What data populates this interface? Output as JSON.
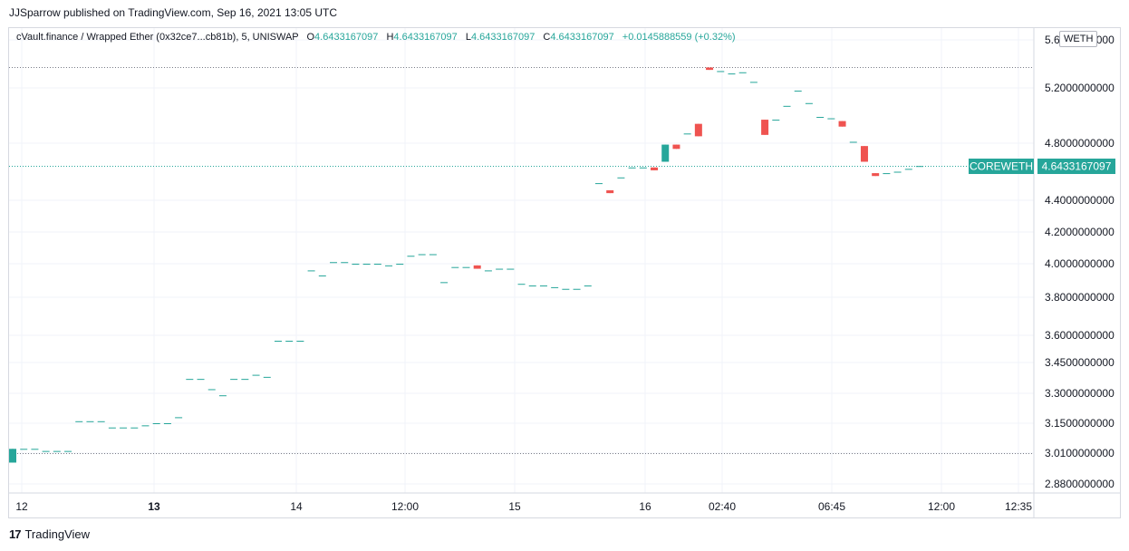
{
  "header": {
    "published": "JJSparrow published on TradingView.com, Sep 16, 2021 13:05 UTC"
  },
  "legend": {
    "symbol": "cVault.finance / Wrapped Ether (0x32ce7...cb81b), 5, UNISWAP",
    "o_label": "O",
    "o_value": "4.6433167097",
    "h_label": "H",
    "h_value": "4.6433167097",
    "l_label": "L",
    "l_value": "4.6433167097",
    "c_label": "C",
    "c_value": "4.6433167097",
    "change": "+0.0145888559 (+0.32%)"
  },
  "currency": "WETH",
  "footer": {
    "brand": "TradingView",
    "logo": "17"
  },
  "colors": {
    "up": "#26a69a",
    "down": "#ef5350",
    "grid": "#f0f3fa",
    "axis_text": "#131722"
  },
  "chart_data": {
    "type": "candlestick",
    "title": "",
    "y_axis_labels": [
      "5.6000000000",
      "5.2000000000",
      "4.8000000000",
      "4.4000000000",
      "4.2000000000",
      "4.0000000000",
      "3.8000000000",
      "3.6000000000",
      "3.4500000000",
      "3.3000000000",
      "3.1500000000",
      "3.0100000000",
      "2.8800000000"
    ],
    "x_axis_labels": [
      "12",
      "13",
      "14",
      "12:00",
      "15",
      "16",
      "02:40",
      "06:45",
      "12:00",
      "12:35"
    ],
    "x_axis_bold": [
      "13"
    ],
    "last_price_label": "COREWETH",
    "last_price": "4.6433167097",
    "reference_lines": [
      3.01,
      5.37
    ],
    "candles": [
      {
        "o": 2.97,
        "h": 3.03,
        "l": 2.97,
        "c": 3.03
      },
      {
        "o": 3.03,
        "h": 3.03,
        "l": 3.03,
        "c": 3.03
      },
      {
        "o": 3.03,
        "h": 3.03,
        "l": 3.03,
        "c": 3.03
      },
      {
        "o": 3.02,
        "h": 3.02,
        "l": 3.02,
        "c": 3.02
      },
      {
        "o": 3.02,
        "h": 3.02,
        "l": 3.02,
        "c": 3.02
      },
      {
        "o": 3.02,
        "h": 3.02,
        "l": 3.02,
        "c": 3.02
      },
      {
        "o": 3.16,
        "h": 3.16,
        "l": 3.16,
        "c": 3.16
      },
      {
        "o": 3.16,
        "h": 3.16,
        "l": 3.16,
        "c": 3.16
      },
      {
        "o": 3.16,
        "h": 3.16,
        "l": 3.16,
        "c": 3.16
      },
      {
        "o": 3.13,
        "h": 3.13,
        "l": 3.13,
        "c": 3.13
      },
      {
        "o": 3.13,
        "h": 3.13,
        "l": 3.13,
        "c": 3.13
      },
      {
        "o": 3.13,
        "h": 3.13,
        "l": 3.13,
        "c": 3.13
      },
      {
        "o": 3.14,
        "h": 3.14,
        "l": 3.14,
        "c": 3.14
      },
      {
        "o": 3.15,
        "h": 3.15,
        "l": 3.15,
        "c": 3.15
      },
      {
        "o": 3.15,
        "h": 3.15,
        "l": 3.15,
        "c": 3.15
      },
      {
        "o": 3.18,
        "h": 3.18,
        "l": 3.18,
        "c": 3.18
      },
      {
        "o": 3.37,
        "h": 3.37,
        "l": 3.37,
        "c": 3.37
      },
      {
        "o": 3.37,
        "h": 3.37,
        "l": 3.37,
        "c": 3.37
      },
      {
        "o": 3.32,
        "h": 3.32,
        "l": 3.32,
        "c": 3.32
      },
      {
        "o": 3.29,
        "h": 3.29,
        "l": 3.29,
        "c": 3.29
      },
      {
        "o": 3.37,
        "h": 3.37,
        "l": 3.37,
        "c": 3.37
      },
      {
        "o": 3.37,
        "h": 3.37,
        "l": 3.37,
        "c": 3.37
      },
      {
        "o": 3.39,
        "h": 3.39,
        "l": 3.39,
        "c": 3.39
      },
      {
        "o": 3.38,
        "h": 3.38,
        "l": 3.38,
        "c": 3.38
      },
      {
        "o": 3.57,
        "h": 3.57,
        "l": 3.57,
        "c": 3.57
      },
      {
        "o": 3.57,
        "h": 3.57,
        "l": 3.57,
        "c": 3.57
      },
      {
        "o": 3.57,
        "h": 3.57,
        "l": 3.57,
        "c": 3.57
      },
      {
        "o": 3.96,
        "h": 3.96,
        "l": 3.96,
        "c": 3.96
      },
      {
        "o": 3.93,
        "h": 3.93,
        "l": 3.93,
        "c": 3.93
      },
      {
        "o": 4.01,
        "h": 4.01,
        "l": 4.01,
        "c": 4.01
      },
      {
        "o": 4.01,
        "h": 4.01,
        "l": 4.01,
        "c": 4.01
      },
      {
        "o": 4.0,
        "h": 4.0,
        "l": 4.0,
        "c": 4.0
      },
      {
        "o": 4.0,
        "h": 4.0,
        "l": 4.0,
        "c": 4.0
      },
      {
        "o": 4.0,
        "h": 4.0,
        "l": 4.0,
        "c": 4.0
      },
      {
        "o": 3.99,
        "h": 3.99,
        "l": 3.99,
        "c": 3.99
      },
      {
        "o": 4.0,
        "h": 4.0,
        "l": 4.0,
        "c": 4.0
      },
      {
        "o": 4.05,
        "h": 4.05,
        "l": 4.05,
        "c": 4.05
      },
      {
        "o": 4.06,
        "h": 4.06,
        "l": 4.06,
        "c": 4.06
      },
      {
        "o": 4.06,
        "h": 4.06,
        "l": 4.06,
        "c": 4.06
      },
      {
        "o": 3.89,
        "h": 3.89,
        "l": 3.89,
        "c": 3.89
      },
      {
        "o": 3.98,
        "h": 3.98,
        "l": 3.98,
        "c": 3.98
      },
      {
        "o": 3.98,
        "h": 3.98,
        "l": 3.98,
        "c": 3.98
      },
      {
        "o": 3.99,
        "h": 3.99,
        "l": 3.97,
        "c": 3.97
      },
      {
        "o": 3.96,
        "h": 3.96,
        "l": 3.96,
        "c": 3.96
      },
      {
        "o": 3.97,
        "h": 3.97,
        "l": 3.97,
        "c": 3.97
      },
      {
        "o": 3.97,
        "h": 3.97,
        "l": 3.97,
        "c": 3.97
      },
      {
        "o": 3.88,
        "h": 3.88,
        "l": 3.88,
        "c": 3.88
      },
      {
        "o": 3.87,
        "h": 3.87,
        "l": 3.87,
        "c": 3.87
      },
      {
        "o": 3.87,
        "h": 3.87,
        "l": 3.87,
        "c": 3.87
      },
      {
        "o": 3.86,
        "h": 3.86,
        "l": 3.86,
        "c": 3.86
      },
      {
        "o": 3.85,
        "h": 3.85,
        "l": 3.85,
        "c": 3.85
      },
      {
        "o": 3.85,
        "h": 3.85,
        "l": 3.85,
        "c": 3.85
      },
      {
        "o": 3.87,
        "h": 3.87,
        "l": 3.87,
        "c": 3.87
      },
      {
        "o": 4.52,
        "h": 4.52,
        "l": 4.52,
        "c": 4.52
      },
      {
        "o": 4.47,
        "h": 4.47,
        "l": 4.45,
        "c": 4.45
      },
      {
        "o": 4.56,
        "h": 4.56,
        "l": 4.56,
        "c": 4.56
      },
      {
        "o": 4.63,
        "h": 4.63,
        "l": 4.63,
        "c": 4.63
      },
      {
        "o": 4.63,
        "h": 4.63,
        "l": 4.63,
        "c": 4.63
      },
      {
        "o": 4.63,
        "h": 4.63,
        "l": 4.61,
        "c": 4.61
      },
      {
        "o": 4.67,
        "h": 4.79,
        "l": 4.67,
        "c": 4.79
      },
      {
        "o": 4.79,
        "h": 4.79,
        "l": 4.76,
        "c": 4.76
      },
      {
        "o": 4.87,
        "h": 4.87,
        "l": 4.87,
        "c": 4.87
      },
      {
        "o": 4.94,
        "h": 4.94,
        "l": 4.85,
        "c": 4.85
      },
      {
        "o": 5.37,
        "h": 5.37,
        "l": 5.35,
        "c": 5.35
      },
      {
        "o": 5.34,
        "h": 5.34,
        "l": 5.34,
        "c": 5.34
      },
      {
        "o": 5.32,
        "h": 5.32,
        "l": 5.32,
        "c": 5.32
      },
      {
        "o": 5.33,
        "h": 5.33,
        "l": 5.33,
        "c": 5.33
      },
      {
        "o": 5.25,
        "h": 5.25,
        "l": 5.25,
        "c": 5.25
      },
      {
        "o": 4.97,
        "h": 4.97,
        "l": 4.86,
        "c": 4.86
      },
      {
        "o": 4.97,
        "h": 4.97,
        "l": 4.97,
        "c": 4.97
      },
      {
        "o": 5.07,
        "h": 5.07,
        "l": 5.07,
        "c": 5.07
      },
      {
        "o": 5.18,
        "h": 5.18,
        "l": 5.18,
        "c": 5.18
      },
      {
        "o": 5.09,
        "h": 5.09,
        "l": 5.09,
        "c": 5.09
      },
      {
        "o": 4.99,
        "h": 4.99,
        "l": 4.99,
        "c": 4.99
      },
      {
        "o": 4.98,
        "h": 4.98,
        "l": 4.98,
        "c": 4.98
      },
      {
        "o": 4.96,
        "h": 4.96,
        "l": 4.92,
        "c": 4.92
      },
      {
        "o": 4.81,
        "h": 4.81,
        "l": 4.81,
        "c": 4.81
      },
      {
        "o": 4.78,
        "h": 4.78,
        "l": 4.67,
        "c": 4.67
      },
      {
        "o": 4.59,
        "h": 4.59,
        "l": 4.57,
        "c": 4.57
      },
      {
        "o": 4.59,
        "h": 4.59,
        "l": 4.59,
        "c": 4.59
      },
      {
        "o": 4.6,
        "h": 4.6,
        "l": 4.6,
        "c": 4.6
      },
      {
        "o": 4.62,
        "h": 4.62,
        "l": 4.62,
        "c": 4.62
      },
      {
        "o": 4.64,
        "h": 4.64,
        "l": 4.64,
        "c": 4.64
      }
    ]
  }
}
